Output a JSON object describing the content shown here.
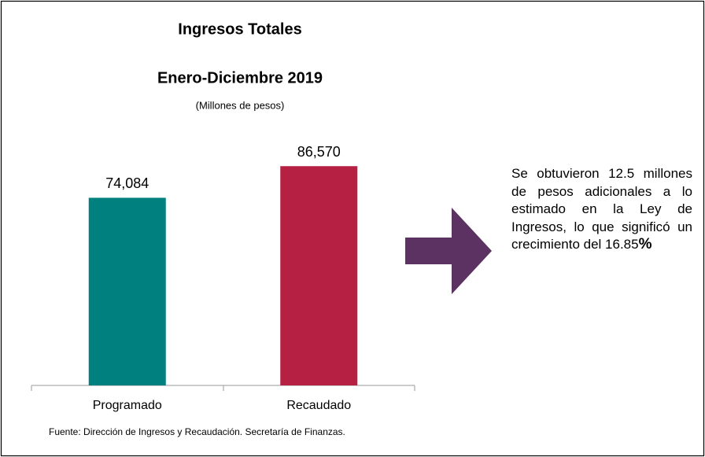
{
  "chart_data": {
    "type": "bar",
    "title": "Ingresos Totales",
    "subtitle": "Enero-Diciembre 2019",
    "unit_label": "(Millones de pesos)",
    "categories": [
      "Programado",
      "Recaudado"
    ],
    "values": [
      74084,
      86570
    ],
    "value_labels": [
      "74,084",
      "86,570"
    ],
    "colors": [
      "#00807f",
      "#b52043"
    ],
    "ylim": [
      0,
      100000
    ],
    "annotation": [
      "Se obtuvieron 12.5 millones de pesos adicionales a lo estimado en la Ley de Ingresos, lo que significó un crecimiento del 16.85",
      "%"
    ],
    "annotation_arrow_color": "#5b3262",
    "source": "Fuente: Dirección de Ingresos y Recaudación. Secretaría de Finanzas."
  }
}
